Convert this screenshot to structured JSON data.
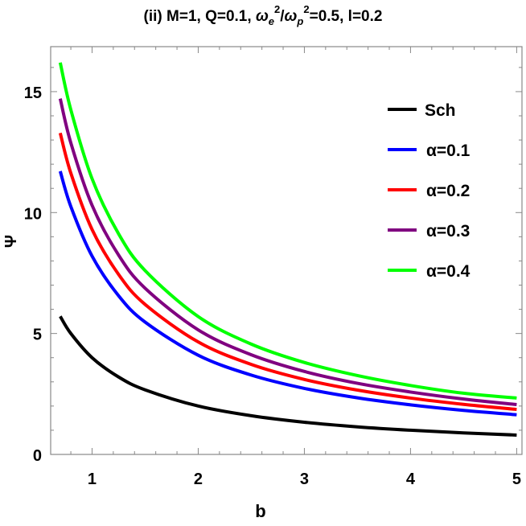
{
  "chart_data": {
    "type": "line",
    "title": "(ii) M=1,  Q=0.1, ωe²/ωp²=0.5, l=0.2",
    "title_parts": {
      "prefix": "(ii) M=1,  Q=0.1, ",
      "w1": "ω",
      "s1": "e",
      "p1": "2",
      "slash": "/",
      "w2": "ω",
      "s2": "p",
      "p2": "2",
      "suffix": "=0.5, l=0.2"
    },
    "xlabel": "b",
    "ylabel": "Ψ",
    "xlim": [
      0.61,
      5.05
    ],
    "ylim": [
      0,
      16.86
    ],
    "xticks": [
      1,
      2,
      3,
      4,
      5
    ],
    "yticks": [
      0,
      5,
      10,
      15
    ],
    "grid": false,
    "legend_position": "right",
    "x": [
      0.7,
      0.8,
      1,
      1.25,
      1.5,
      2,
      2.5,
      3,
      3.5,
      4,
      4.5,
      5
    ],
    "series": [
      {
        "name": "Sch",
        "color": "#000000",
        "values": [
          5.71,
          5.0,
          4.0,
          3.2,
          2.67,
          2.0,
          1.6,
          1.33,
          1.14,
          1.0,
          0.89,
          0.8
        ]
      },
      {
        "name": "α=0.1",
        "color": "#0000ff",
        "values": [
          11.71,
          10.25,
          8.2,
          6.56,
          5.47,
          4.1,
          3.28,
          2.73,
          2.34,
          2.05,
          1.82,
          1.64
        ]
      },
      {
        "name": "α=0.2",
        "color": "#ff0000",
        "values": [
          13.29,
          11.63,
          9.3,
          7.44,
          6.2,
          4.65,
          3.72,
          3.1,
          2.66,
          2.33,
          2.07,
          1.86
        ]
      },
      {
        "name": "α=0.3",
        "color": "#800080",
        "values": [
          14.71,
          12.88,
          10.3,
          8.24,
          6.87,
          5.15,
          4.12,
          3.43,
          2.94,
          2.58,
          2.29,
          2.06
        ]
      },
      {
        "name": "α=0.4",
        "color": "#00ff00",
        "values": [
          16.2,
          14.25,
          11.4,
          9.12,
          7.6,
          5.7,
          4.56,
          3.8,
          3.26,
          2.85,
          2.53,
          2.33
        ]
      }
    ]
  }
}
